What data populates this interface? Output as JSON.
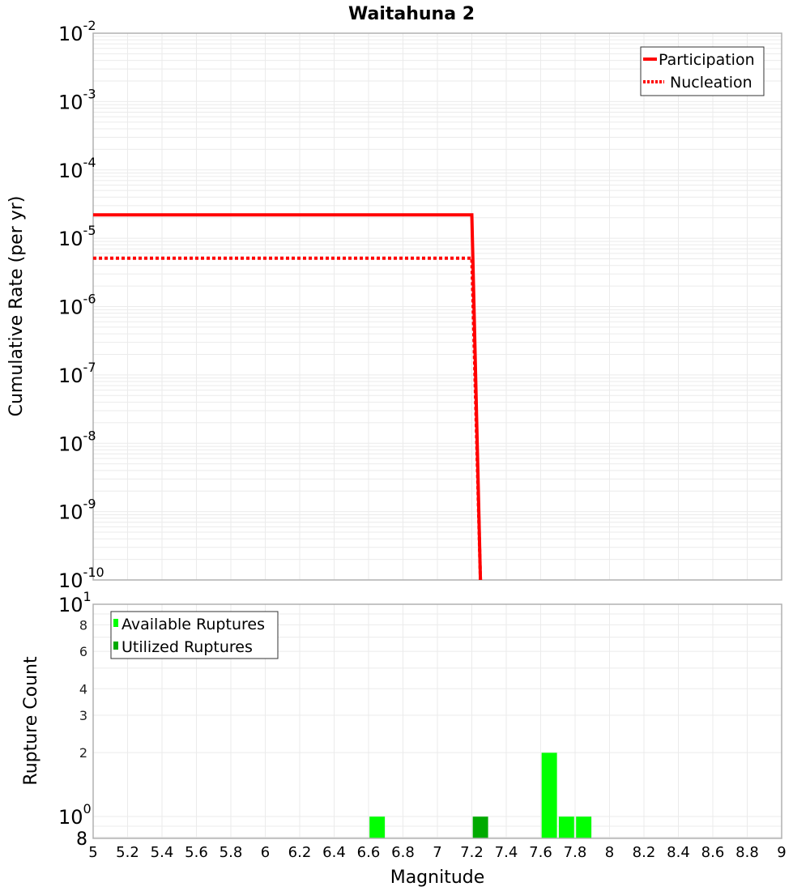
{
  "chart_data": [
    {
      "type": "line",
      "title": "Waitahuna 2",
      "xlabel": "Magnitude",
      "ylabel": "Cumulative Rate (per yr)",
      "xlim": [
        5,
        9
      ],
      "ylim": [
        1e-10,
        0.01
      ],
      "yscale": "log",
      "grid": true,
      "legend_position": "top-right",
      "y_tick_exponents": [
        -2,
        -3,
        -4,
        -5,
        -6,
        -7,
        -8,
        -9,
        -10
      ],
      "series": [
        {
          "name": "Participation",
          "style": "solid",
          "color": "#ff0000",
          "x": [
            5.0,
            7.2,
            7.25
          ],
          "y": [
            2.2e-05,
            2.2e-05,
            1e-10
          ]
        },
        {
          "name": "Nucleation",
          "style": "dotted",
          "color": "#ff0000",
          "x": [
            5.0,
            7.2,
            7.25
          ],
          "y": [
            5.1e-06,
            5.1e-06,
            1e-10
          ]
        }
      ]
    },
    {
      "type": "bar",
      "title": "",
      "xlabel": "Magnitude",
      "ylabel": "Rupture Count",
      "xlim": [
        5,
        9
      ],
      "ylim": [
        0.8,
        10
      ],
      "yscale": "log",
      "grid": true,
      "legend_position": "top-left",
      "x_ticks": [
        "5",
        "5.2",
        "5.4",
        "5.6",
        "5.8",
        "6",
        "6.2",
        "6.4",
        "6.6",
        "6.8",
        "7",
        "7.2",
        "7.4",
        "7.6",
        "7.8",
        "8",
        "8.2",
        "8.4",
        "8.6",
        "8.8",
        "9"
      ],
      "y_tick_labels": [
        "10^1",
        "8",
        "6",
        "4",
        "3",
        "2",
        "10^0",
        "8"
      ],
      "series": [
        {
          "name": "Available Ruptures",
          "color": "#00ff00",
          "bins": [
            {
              "x0": 6.6,
              "x1": 6.7,
              "count": 1
            },
            {
              "x0": 7.6,
              "x1": 7.7,
              "count": 2
            },
            {
              "x0": 7.7,
              "x1": 7.8,
              "count": 1
            },
            {
              "x0": 7.8,
              "x1": 7.9,
              "count": 1
            }
          ]
        },
        {
          "name": "Utilized Ruptures",
          "color": "#00aa00",
          "bins": [
            {
              "x0": 7.2,
              "x1": 7.3,
              "count": 1
            }
          ]
        }
      ]
    }
  ],
  "labels": {
    "title": "Waitahuna 2",
    "top_ylabel": "Cumulative Rate (per yr)",
    "bottom_ylabel": "Rupture Count",
    "xlabel": "Magnitude",
    "legend_top": [
      "Participation",
      "Nucleation"
    ],
    "legend_bottom": [
      "Available Ruptures",
      "Utilized Ruptures"
    ]
  }
}
